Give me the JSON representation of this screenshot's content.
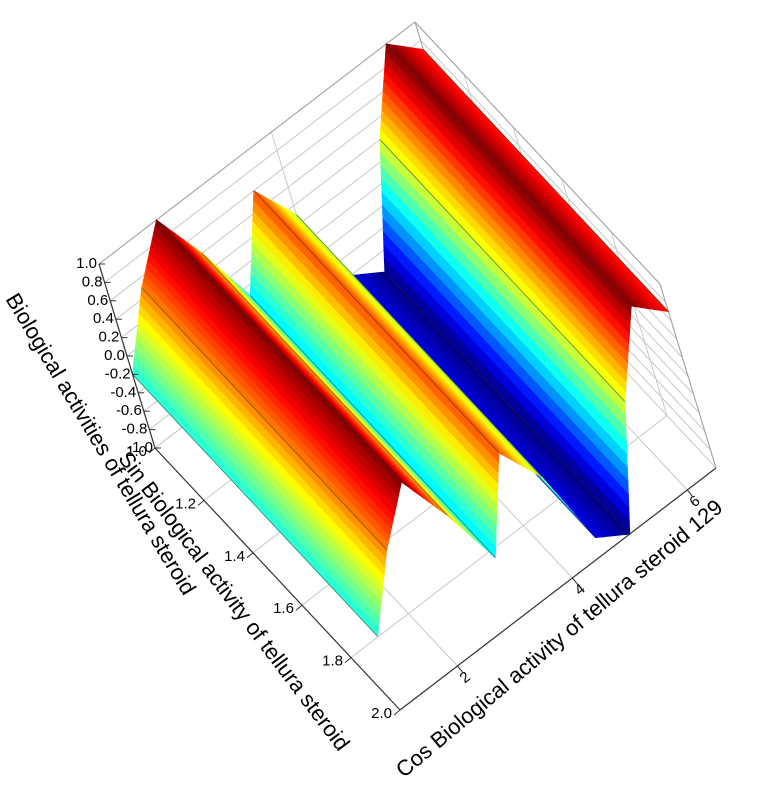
{
  "chart_data": {
    "type": "surface3d",
    "x_label": "Cos Biological activity of tellura steroid 129",
    "y_label": "Sin Biological activity of tellura steroid",
    "z_label": "Biological activities of tellura steroid",
    "x": [
      1,
      1.5,
      2,
      2.5,
      3,
      3.5,
      4,
      4.5,
      5,
      5.5,
      6,
      6.5
    ],
    "z": [
      -0.2,
      0.5,
      1,
      0.4,
      -0.3,
      0.6,
      0.1,
      -0.8,
      -1,
      0.2,
      1,
      0.7
    ],
    "xlim": [
      1,
      6.5
    ],
    "ylim": [
      1,
      2
    ],
    "zlim": [
      -1,
      1
    ],
    "xticks": [
      2,
      4,
      6
    ],
    "yticks": [
      {
        "value": 1,
        "label": "1.0"
      },
      1.2,
      1.4,
      1.6,
      1.8,
      {
        "value": 2,
        "label": "2.0"
      }
    ],
    "zticks": [
      {
        "value": 1,
        "label": "1.0"
      },
      0.8,
      0.6,
      0.4,
      0.2,
      {
        "value": 0,
        "label": "0.0"
      },
      -0.2,
      -0.4,
      -0.6,
      -0.8,
      {
        "value": -1,
        "label": "-1.0"
      }
    ],
    "colormap": "jet",
    "grid": true
  }
}
